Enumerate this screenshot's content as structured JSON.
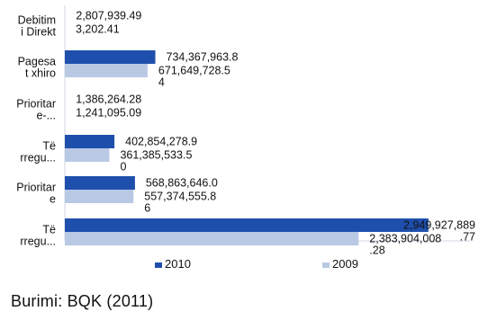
{
  "chart_data": {
    "type": "bar",
    "orientation": "horizontal",
    "categories": [
      [
        "Debitim",
        "i Direkt"
      ],
      [
        "Pagesa",
        "t xhiro"
      ],
      [
        "Prioritar",
        "e-..."
      ],
      [
        "Të",
        "rregu..."
      ],
      [
        "Prioritar",
        "e"
      ],
      [
        "Të",
        "rregu..."
      ]
    ],
    "series": [
      {
        "name": "2010",
        "color": "#1f4fad",
        "values": [
          2807939.49,
          734367963.8,
          1386264.28,
          402854278.9,
          568863646.0,
          2949927889.77
        ],
        "labels": [
          [
            "2,807,939.49"
          ],
          [
            "734,367,963.8"
          ],
          [
            "1,386,264.28"
          ],
          [
            "402,854,278.9"
          ],
          [
            "568,863,646.0"
          ],
          [
            "2,949,927,889",
            ".77"
          ]
        ]
      },
      {
        "name": "2009",
        "color": "#b9c9e4",
        "values": [
          3202.41,
          671649728.54,
          1241095.09,
          361385533.5,
          557374555.86,
          2383904008.28
        ],
        "labels": [
          [
            "3,202.41"
          ],
          [
            "671,649,728.5",
            "4"
          ],
          [
            "1,241,095.09"
          ],
          [
            "361,385,533.5",
            "0"
          ],
          [
            "557,374,555.8",
            "6"
          ],
          [
            "2,383,904,008",
            ".28"
          ]
        ]
      }
    ],
    "xlim": [
      0,
      3200000000
    ],
    "legend_position": "bottom"
  },
  "footer": {
    "source": "Burimi: BQK (2011)"
  }
}
